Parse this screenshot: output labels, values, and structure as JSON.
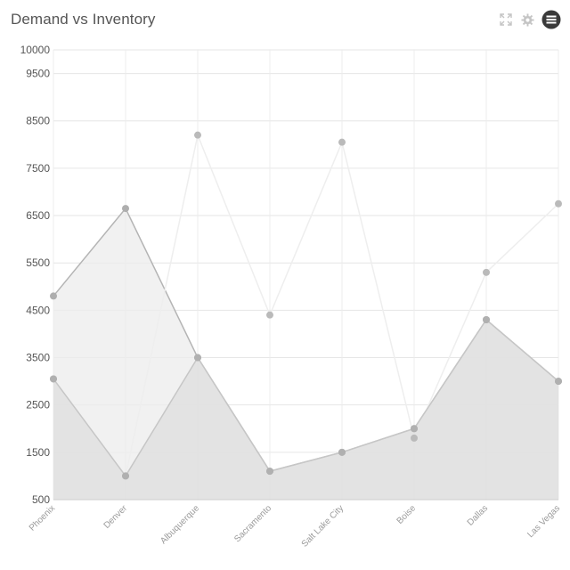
{
  "header": {
    "title": "Demand vs Inventory",
    "icons": [
      "expand-icon",
      "gear-icon",
      "menu-icon"
    ]
  },
  "chart_data": {
    "type": "area",
    "title": "Demand vs Inventory",
    "xlabel": "",
    "ylabel": "",
    "categories": [
      "Phoenix",
      "Denver",
      "Albuquerque",
      "Sacramento",
      "Salt Lake City",
      "Boise",
      "Dallas",
      "Las Vegas"
    ],
    "yticks": [
      500,
      1500,
      2500,
      3500,
      4500,
      5500,
      6500,
      7500,
      8500,
      9500,
      10000
    ],
    "ylim": [
      500,
      10000
    ],
    "grid": true,
    "legend": "none",
    "series": [
      {
        "values": [
          4800,
          6650,
          3500,
          1100,
          1500,
          2000,
          4300,
          3000
        ],
        "fill": "#ececec",
        "stroke": "#b4b4b4",
        "point": "#aeaeae",
        "fill_opacity": 0.75
      },
      {
        "values": [
          3050,
          1000,
          8200,
          4400,
          8050,
          1800,
          5300,
          6750
        ],
        "fill": "#ffffff",
        "stroke": "#eeeeee",
        "point": "#bababa",
        "fill_opacity": 0.0
      },
      {
        "values": [
          3050,
          1000,
          3500,
          1100,
          1500,
          2000,
          4300,
          3000
        ],
        "fill": "#e0e0e0",
        "stroke": "#c6c6c6",
        "point": "#b0b0b0",
        "fill_opacity": 0.8
      }
    ]
  }
}
